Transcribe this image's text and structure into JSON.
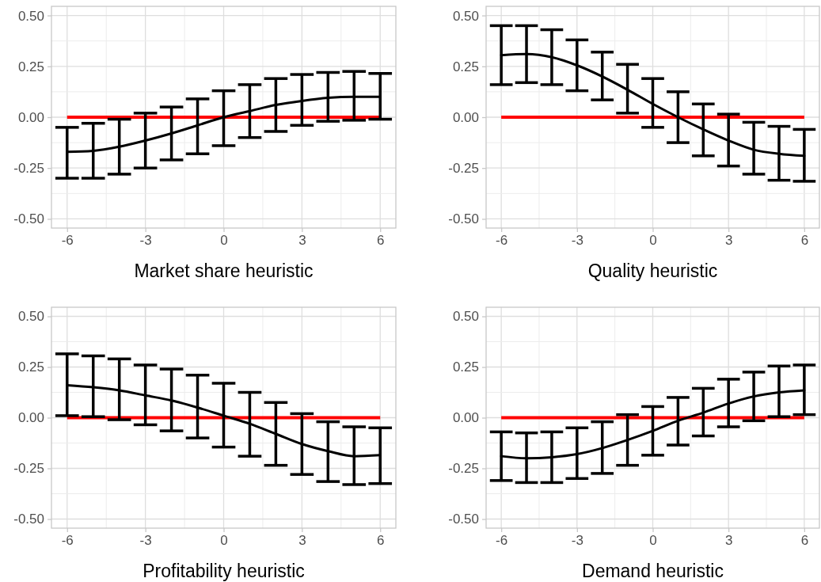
{
  "chart_data": [
    {
      "type": "line",
      "xlabel": "Market share heuristic",
      "x": [
        -6,
        -5,
        -4,
        -3,
        -2,
        -1,
        0,
        1,
        2,
        3,
        4,
        5,
        6
      ],
      "xlim": [
        -6.6,
        6.6
      ],
      "xticks": [
        -6,
        -3,
        0,
        3,
        6
      ],
      "ylim": [
        -0.545,
        0.545
      ],
      "yticks": [
        {
          "value": -0.5,
          "label": "-0.50"
        },
        {
          "value": -0.25,
          "label": "-0.25"
        },
        {
          "value": 0,
          "label": "0.00"
        },
        {
          "value": 0.25,
          "label": "0.25"
        },
        {
          "value": 0.5,
          "label": "0.50"
        }
      ],
      "grid": true,
      "ref_lines": [
        {
          "axis": "y",
          "value": 0,
          "color": "#ff0000"
        }
      ],
      "series": [
        {
          "color": "#000000",
          "values": [
            -0.17,
            -0.165,
            -0.145,
            -0.115,
            -0.08,
            -0.04,
            0.0,
            0.03,
            0.06,
            0.08,
            0.095,
            0.1,
            0.1
          ],
          "errors": [
            [
              -0.3,
              -0.05
            ],
            [
              -0.3,
              -0.03
            ],
            [
              -0.28,
              -0.01
            ],
            [
              -0.25,
              0.02
            ],
            [
              -0.21,
              0.05
            ],
            [
              -0.18,
              0.09
            ],
            [
              -0.14,
              0.13
            ],
            [
              -0.1,
              0.16
            ],
            [
              -0.07,
              0.19
            ],
            [
              -0.04,
              0.21
            ],
            [
              -0.02,
              0.22
            ],
            [
              -0.015,
              0.225
            ],
            [
              -0.01,
              0.215
            ]
          ]
        }
      ]
    },
    {
      "type": "line",
      "xlabel": "Quality heuristic",
      "x": [
        -6,
        -5,
        -4,
        -3,
        -2,
        -1,
        0,
        1,
        2,
        3,
        4,
        5,
        6
      ],
      "xlim": [
        -6.6,
        6.6
      ],
      "xticks": [
        -6,
        -3,
        0,
        3,
        6
      ],
      "ylim": [
        -0.545,
        0.545
      ],
      "yticks": [
        {
          "value": -0.5,
          "label": "-0.50"
        },
        {
          "value": -0.25,
          "label": "-0.25"
        },
        {
          "value": 0,
          "label": "0.00"
        },
        {
          "value": 0.25,
          "label": "0.25"
        },
        {
          "value": 0.5,
          "label": "0.50"
        }
      ],
      "grid": true,
      "ref_lines": [
        {
          "axis": "y",
          "value": 0,
          "color": "#ff0000"
        }
      ],
      "series": [
        {
          "color": "#000000",
          "values": [
            0.305,
            0.31,
            0.295,
            0.255,
            0.2,
            0.135,
            0.065,
            0.0,
            -0.06,
            -0.115,
            -0.16,
            -0.18,
            -0.19
          ],
          "errors": [
            [
              0.16,
              0.45
            ],
            [
              0.17,
              0.45
            ],
            [
              0.16,
              0.43
            ],
            [
              0.13,
              0.38
            ],
            [
              0.085,
              0.32
            ],
            [
              0.02,
              0.26
            ],
            [
              -0.05,
              0.19
            ],
            [
              -0.125,
              0.125
            ],
            [
              -0.19,
              0.065
            ],
            [
              -0.24,
              0.015
            ],
            [
              -0.28,
              -0.025
            ],
            [
              -0.31,
              -0.045
            ],
            [
              -0.315,
              -0.06
            ]
          ]
        }
      ]
    },
    {
      "type": "line",
      "xlabel": "Profitability heuristic",
      "x": [
        -6,
        -5,
        -4,
        -3,
        -2,
        -1,
        0,
        1,
        2,
        3,
        4,
        5,
        6
      ],
      "xlim": [
        -6.6,
        6.6
      ],
      "xticks": [
        -6,
        -3,
        0,
        3,
        6
      ],
      "ylim": [
        -0.545,
        0.545
      ],
      "yticks": [
        {
          "value": -0.5,
          "label": "-0.50"
        },
        {
          "value": -0.25,
          "label": "-0.25"
        },
        {
          "value": 0,
          "label": "0.00"
        },
        {
          "value": 0.25,
          "label": "0.25"
        },
        {
          "value": 0.5,
          "label": "0.50"
        }
      ],
      "grid": true,
      "ref_lines": [
        {
          "axis": "y",
          "value": 0,
          "color": "#ff0000"
        }
      ],
      "series": [
        {
          "color": "#000000",
          "values": [
            0.16,
            0.15,
            0.135,
            0.11,
            0.085,
            0.05,
            0.01,
            -0.03,
            -0.08,
            -0.13,
            -0.165,
            -0.19,
            -0.185
          ],
          "errors": [
            [
              0.01,
              0.315
            ],
            [
              0.005,
              0.305
            ],
            [
              -0.01,
              0.29
            ],
            [
              -0.035,
              0.26
            ],
            [
              -0.065,
              0.24
            ],
            [
              -0.1,
              0.21
            ],
            [
              -0.145,
              0.17
            ],
            [
              -0.19,
              0.125
            ],
            [
              -0.235,
              0.075
            ],
            [
              -0.28,
              0.02
            ],
            [
              -0.315,
              -0.02
            ],
            [
              -0.33,
              -0.045
            ],
            [
              -0.325,
              -0.05
            ]
          ]
        }
      ]
    },
    {
      "type": "line",
      "xlabel": "Demand heuristic",
      "x": [
        -6,
        -5,
        -4,
        -3,
        -2,
        -1,
        0,
        1,
        2,
        3,
        4,
        5,
        6
      ],
      "xlim": [
        -6.6,
        6.6
      ],
      "xticks": [
        -6,
        -3,
        0,
        3,
        6
      ],
      "ylim": [
        -0.545,
        0.545
      ],
      "yticks": [
        {
          "value": -0.5,
          "label": "-0.50"
        },
        {
          "value": -0.25,
          "label": "-0.25"
        },
        {
          "value": 0,
          "label": "0.00"
        },
        {
          "value": 0.25,
          "label": "0.25"
        },
        {
          "value": 0.5,
          "label": "0.50"
        }
      ],
      "grid": true,
      "ref_lines": [
        {
          "axis": "y",
          "value": 0,
          "color": "#ff0000"
        }
      ],
      "series": [
        {
          "color": "#000000",
          "values": [
            -0.19,
            -0.2,
            -0.195,
            -0.18,
            -0.15,
            -0.11,
            -0.065,
            -0.015,
            0.025,
            0.07,
            0.105,
            0.125,
            0.135
          ],
          "errors": [
            [
              -0.31,
              -0.07
            ],
            [
              -0.32,
              -0.075
            ],
            [
              -0.32,
              -0.07
            ],
            [
              -0.3,
              -0.05
            ],
            [
              -0.275,
              -0.02
            ],
            [
              -0.235,
              0.015
            ],
            [
              -0.185,
              0.055
            ],
            [
              -0.135,
              0.1
            ],
            [
              -0.09,
              0.145
            ],
            [
              -0.045,
              0.19
            ],
            [
              -0.015,
              0.225
            ],
            [
              0.005,
              0.255
            ],
            [
              0.015,
              0.26
            ]
          ]
        }
      ]
    }
  ]
}
